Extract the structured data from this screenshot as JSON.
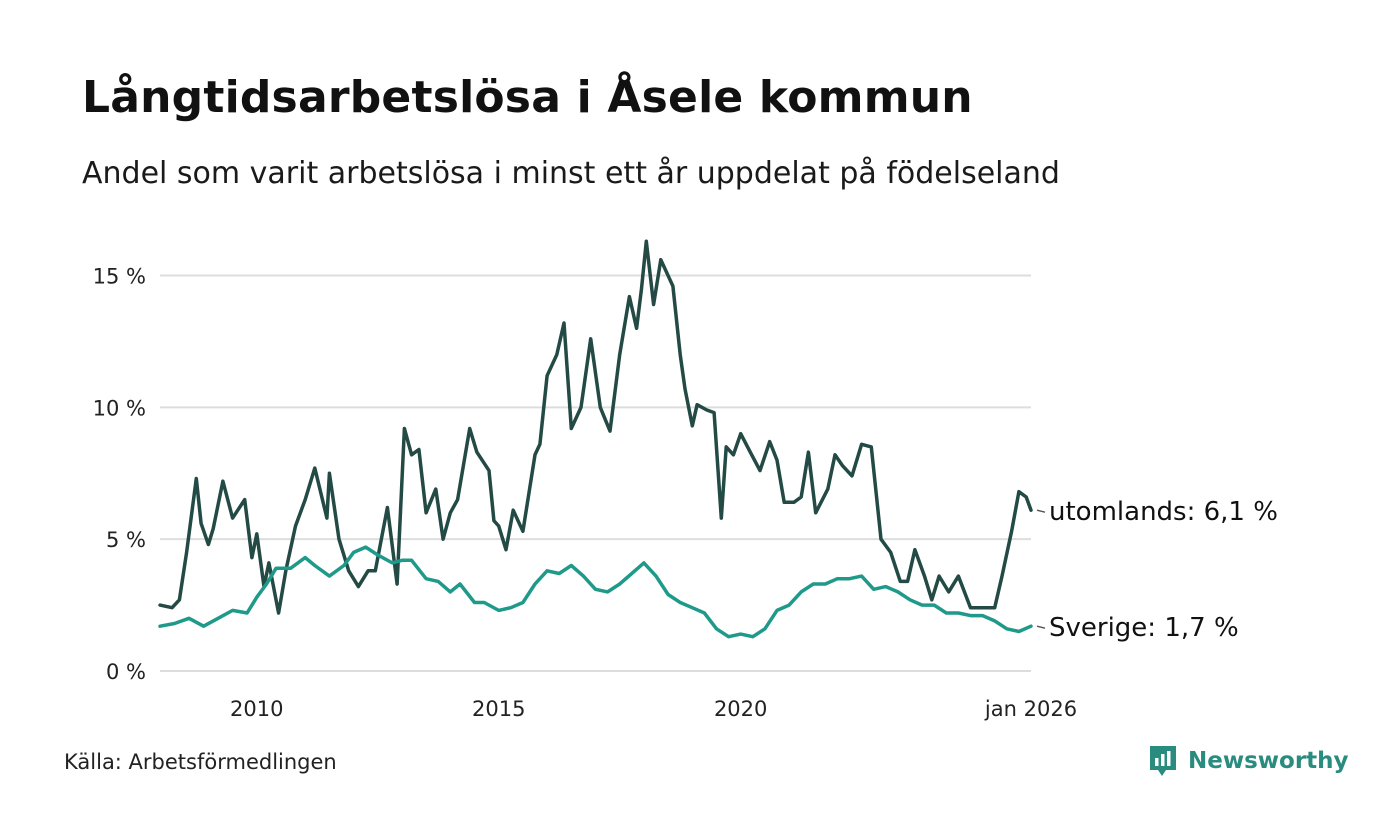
{
  "title": "Långtidsarbetslösa i Åsele kommun",
  "subtitle": "Andel som varit arbetslösa i minst ett år uppdelat på födelseland",
  "source": "Källa: Arbetsförmedlingen",
  "brand": "Newsworthy",
  "colors": {
    "utomlands": "#234a44",
    "sverige": "#1f9a8a",
    "grid": "#dddddd",
    "brand": "#2a8c7f"
  },
  "chart_data": {
    "type": "line",
    "title": "Långtidsarbetslösa i Åsele kommun",
    "xlabel": "",
    "ylabel": "",
    "xlim": [
      2008.0,
      2026.0
    ],
    "ylim": [
      0,
      16.5
    ],
    "yticks": [
      0,
      5,
      10,
      15
    ],
    "ytick_labels": [
      "0 %",
      "5 %",
      "10 %",
      "15 %"
    ],
    "xticks": [
      2010,
      2015,
      2020,
      2026
    ],
    "xtick_labels": [
      "2010",
      "2015",
      "2020",
      "jan 2026"
    ],
    "grid": true,
    "series": [
      {
        "name": "utomlands",
        "end_label": "utomlands: 6,1 %",
        "x": [
          2008.0,
          2008.25,
          2008.4,
          2008.55,
          2008.75,
          2008.85,
          2009.0,
          2009.1,
          2009.3,
          2009.5,
          2009.75,
          2009.9,
          2010.0,
          2010.15,
          2010.25,
          2010.45,
          2010.6,
          2010.8,
          2011.0,
          2011.2,
          2011.45,
          2011.5,
          2011.7,
          2011.9,
          2012.1,
          2012.3,
          2012.45,
          2012.7,
          2012.9,
          2013.05,
          2013.2,
          2013.35,
          2013.5,
          2013.7,
          2013.85,
          2014.0,
          2014.15,
          2014.4,
          2014.55,
          2014.8,
          2014.9,
          2015.0,
          2015.15,
          2015.3,
          2015.5,
          2015.75,
          2015.85,
          2016.0,
          2016.2,
          2016.35,
          2016.5,
          2016.7,
          2016.9,
          2017.1,
          2017.3,
          2017.5,
          2017.7,
          2017.85,
          2017.95,
          2018.05,
          2018.2,
          2018.35,
          2018.6,
          2018.75,
          2018.85,
          2019.0,
          2019.1,
          2019.3,
          2019.45,
          2019.6,
          2019.7,
          2019.85,
          2020.0,
          2020.2,
          2020.4,
          2020.6,
          2020.75,
          2020.9,
          2021.1,
          2021.25,
          2021.4,
          2021.55,
          2021.8,
          2021.95,
          2022.1,
          2022.3,
          2022.5,
          2022.7,
          2022.9,
          2023.1,
          2023.3,
          2023.45,
          2023.6,
          2023.8,
          2023.95,
          2024.1,
          2024.3,
          2024.5,
          2024.75,
          2024.9,
          2025.1,
          2025.25,
          2025.4,
          2025.6,
          2025.75,
          2025.9,
          2026.0
        ],
        "y": [
          2.5,
          2.4,
          2.7,
          4.5,
          7.3,
          5.6,
          4.8,
          5.4,
          7.2,
          5.8,
          6.5,
          4.3,
          5.2,
          3.2,
          4.1,
          2.2,
          3.8,
          5.5,
          6.5,
          7.7,
          5.8,
          7.5,
          5.0,
          3.8,
          3.2,
          3.8,
          3.8,
          6.2,
          3.3,
          9.2,
          8.2,
          8.4,
          6.0,
          6.9,
          5.0,
          6.0,
          6.5,
          9.2,
          8.3,
          7.6,
          5.7,
          5.5,
          4.6,
          6.1,
          5.3,
          8.2,
          8.6,
          11.2,
          12.0,
          13.2,
          9.2,
          10.0,
          12.6,
          10.0,
          9.1,
          12.0,
          14.2,
          13.0,
          14.5,
          16.3,
          13.9,
          15.6,
          14.6,
          12.0,
          10.7,
          9.3,
          10.1,
          9.9,
          9.8,
          5.8,
          8.5,
          8.2,
          9.0,
          8.3,
          7.6,
          8.7,
          8.0,
          6.4,
          6.4,
          6.6,
          8.3,
          6.0,
          6.9,
          8.2,
          7.8,
          7.4,
          8.6,
          8.5,
          5.0,
          4.5,
          3.4,
          3.4,
          4.6,
          3.6,
          2.7,
          3.6,
          3.0,
          3.6,
          2.4,
          2.4,
          2.4,
          2.4,
          3.6,
          5.3,
          6.8,
          6.6,
          6.1
        ]
      },
      {
        "name": "Sverige",
        "end_label": "Sverige: 1,7 %",
        "x": [
          2008.0,
          2008.3,
          2008.6,
          2008.9,
          2009.2,
          2009.5,
          2009.8,
          2010.0,
          2010.2,
          2010.4,
          2010.7,
          2011.0,
          2011.2,
          2011.5,
          2011.8,
          2012.0,
          2012.25,
          2012.5,
          2012.8,
          2013.0,
          2013.2,
          2013.5,
          2013.75,
          2014.0,
          2014.2,
          2014.5,
          2014.7,
          2015.0,
          2015.25,
          2015.5,
          2015.75,
          2016.0,
          2016.25,
          2016.5,
          2016.75,
          2017.0,
          2017.25,
          2017.5,
          2017.75,
          2018.0,
          2018.25,
          2018.5,
          2018.75,
          2019.0,
          2019.25,
          2019.5,
          2019.75,
          2020.0,
          2020.25,
          2020.5,
          2020.75,
          2021.0,
          2021.25,
          2021.5,
          2021.75,
          2022.0,
          2022.25,
          2022.5,
          2022.75,
          2023.0,
          2023.25,
          2023.5,
          2023.75,
          2024.0,
          2024.25,
          2024.5,
          2024.75,
          2025.0,
          2025.25,
          2025.5,
          2025.75,
          2026.0
        ],
        "y": [
          1.7,
          1.8,
          2.0,
          1.7,
          2.0,
          2.3,
          2.2,
          2.8,
          3.3,
          3.9,
          3.9,
          4.3,
          4.0,
          3.6,
          4.0,
          4.5,
          4.7,
          4.4,
          4.1,
          4.2,
          4.2,
          3.5,
          3.4,
          3.0,
          3.3,
          2.6,
          2.6,
          2.3,
          2.4,
          2.6,
          3.3,
          3.8,
          3.7,
          4.0,
          3.6,
          3.1,
          3.0,
          3.3,
          3.7,
          4.1,
          3.6,
          2.9,
          2.6,
          2.4,
          2.2,
          1.6,
          1.3,
          1.4,
          1.3,
          1.6,
          2.3,
          2.5,
          3.0,
          3.3,
          3.3,
          3.5,
          3.5,
          3.6,
          3.1,
          3.2,
          3.0,
          2.7,
          2.5,
          2.5,
          2.2,
          2.2,
          2.1,
          2.1,
          1.9,
          1.6,
          1.5,
          1.7
        ]
      }
    ]
  }
}
